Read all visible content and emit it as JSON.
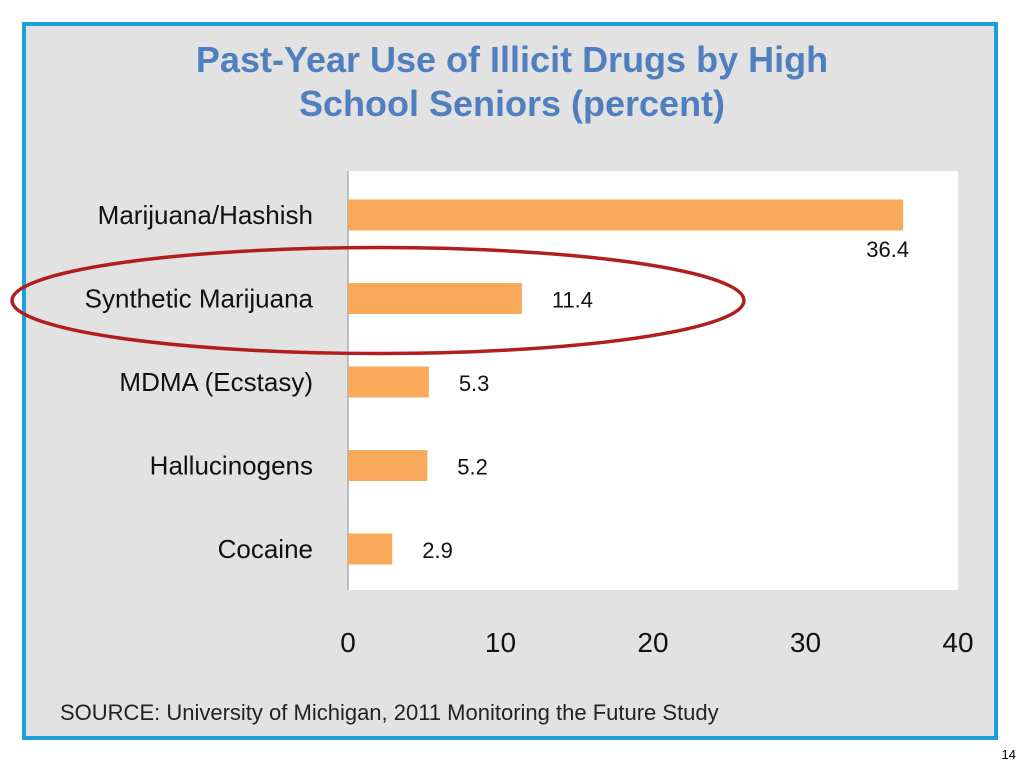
{
  "chart_data": {
    "type": "bar",
    "orientation": "horizontal",
    "title_lines": [
      "Past-Year Use of Illicit Drugs by High",
      "School Seniors (percent)"
    ],
    "categories": [
      "Marijuana/Hashish",
      "Synthetic Marijuana",
      "MDMA (Ecstasy)",
      "Hallucinogens",
      "Cocaine"
    ],
    "values": [
      36.4,
      11.4,
      5.3,
      5.2,
      2.9
    ],
    "value_labels": [
      "36.4",
      "11.4",
      "5.3",
      "5.2",
      "2.9"
    ],
    "xlim": [
      0,
      40
    ],
    "xticks": [
      "0",
      "10",
      "20",
      "30",
      "40"
    ],
    "grid": false,
    "bar_color": "#f8a95a",
    "highlighted_category": "Synthetic Marijuana",
    "highlight_color": "#b01e1e"
  },
  "source": "SOURCE: University of Michigan, 2011 Monitoring the Future Study",
  "page_number": "14",
  "colors": {
    "frame_border": "#1f9fd8",
    "slide_background": "#e2e2e2",
    "plot_background": "#ffffff",
    "title": "#4f7fbf"
  }
}
